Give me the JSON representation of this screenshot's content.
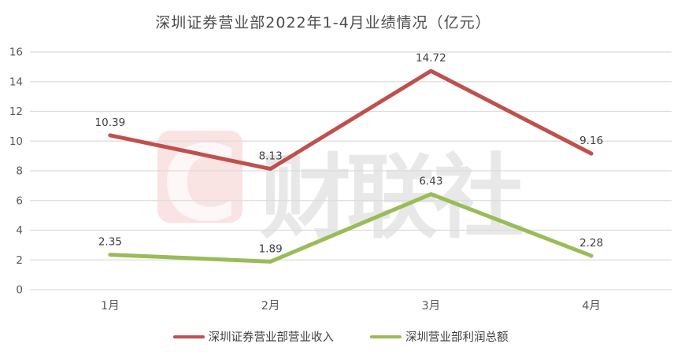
{
  "title": "深圳证券营业部2022年1-4月业绩情况（亿元）",
  "watermark": {
    "logo_letter": "C",
    "text": "财联社",
    "logo_bg": "#fae3e3",
    "logo_fg": "#fdf7f7",
    "text_color": "#e8e8e8"
  },
  "colors": {
    "background": "#ffffff",
    "gridline": "#dcdcdc",
    "axis_text": "#595959",
    "data_label_text": "#404040",
    "title_text": "#4c4c4c"
  },
  "chart_data": {
    "type": "line",
    "title": "深圳证券营业部2022年1-4月业绩情况（亿元）",
    "categories": [
      "1月",
      "2月",
      "3月",
      "4月"
    ],
    "series": [
      {
        "name": "深圳证券营业部营业收入",
        "color": "#c0504d",
        "values": [
          10.39,
          8.13,
          14.72,
          9.16
        ]
      },
      {
        "name": "深圳营业部利润总额",
        "color": "#9bbb59",
        "values": [
          2.35,
          1.89,
          6.43,
          2.28
        ]
      }
    ],
    "ylim": [
      0,
      16
    ],
    "yticks": [
      0,
      2,
      4,
      6,
      8,
      10,
      12,
      14,
      16
    ],
    "grid": true,
    "legend_position": "bottom",
    "data_labels": true,
    "data_label_decimals": 2
  }
}
